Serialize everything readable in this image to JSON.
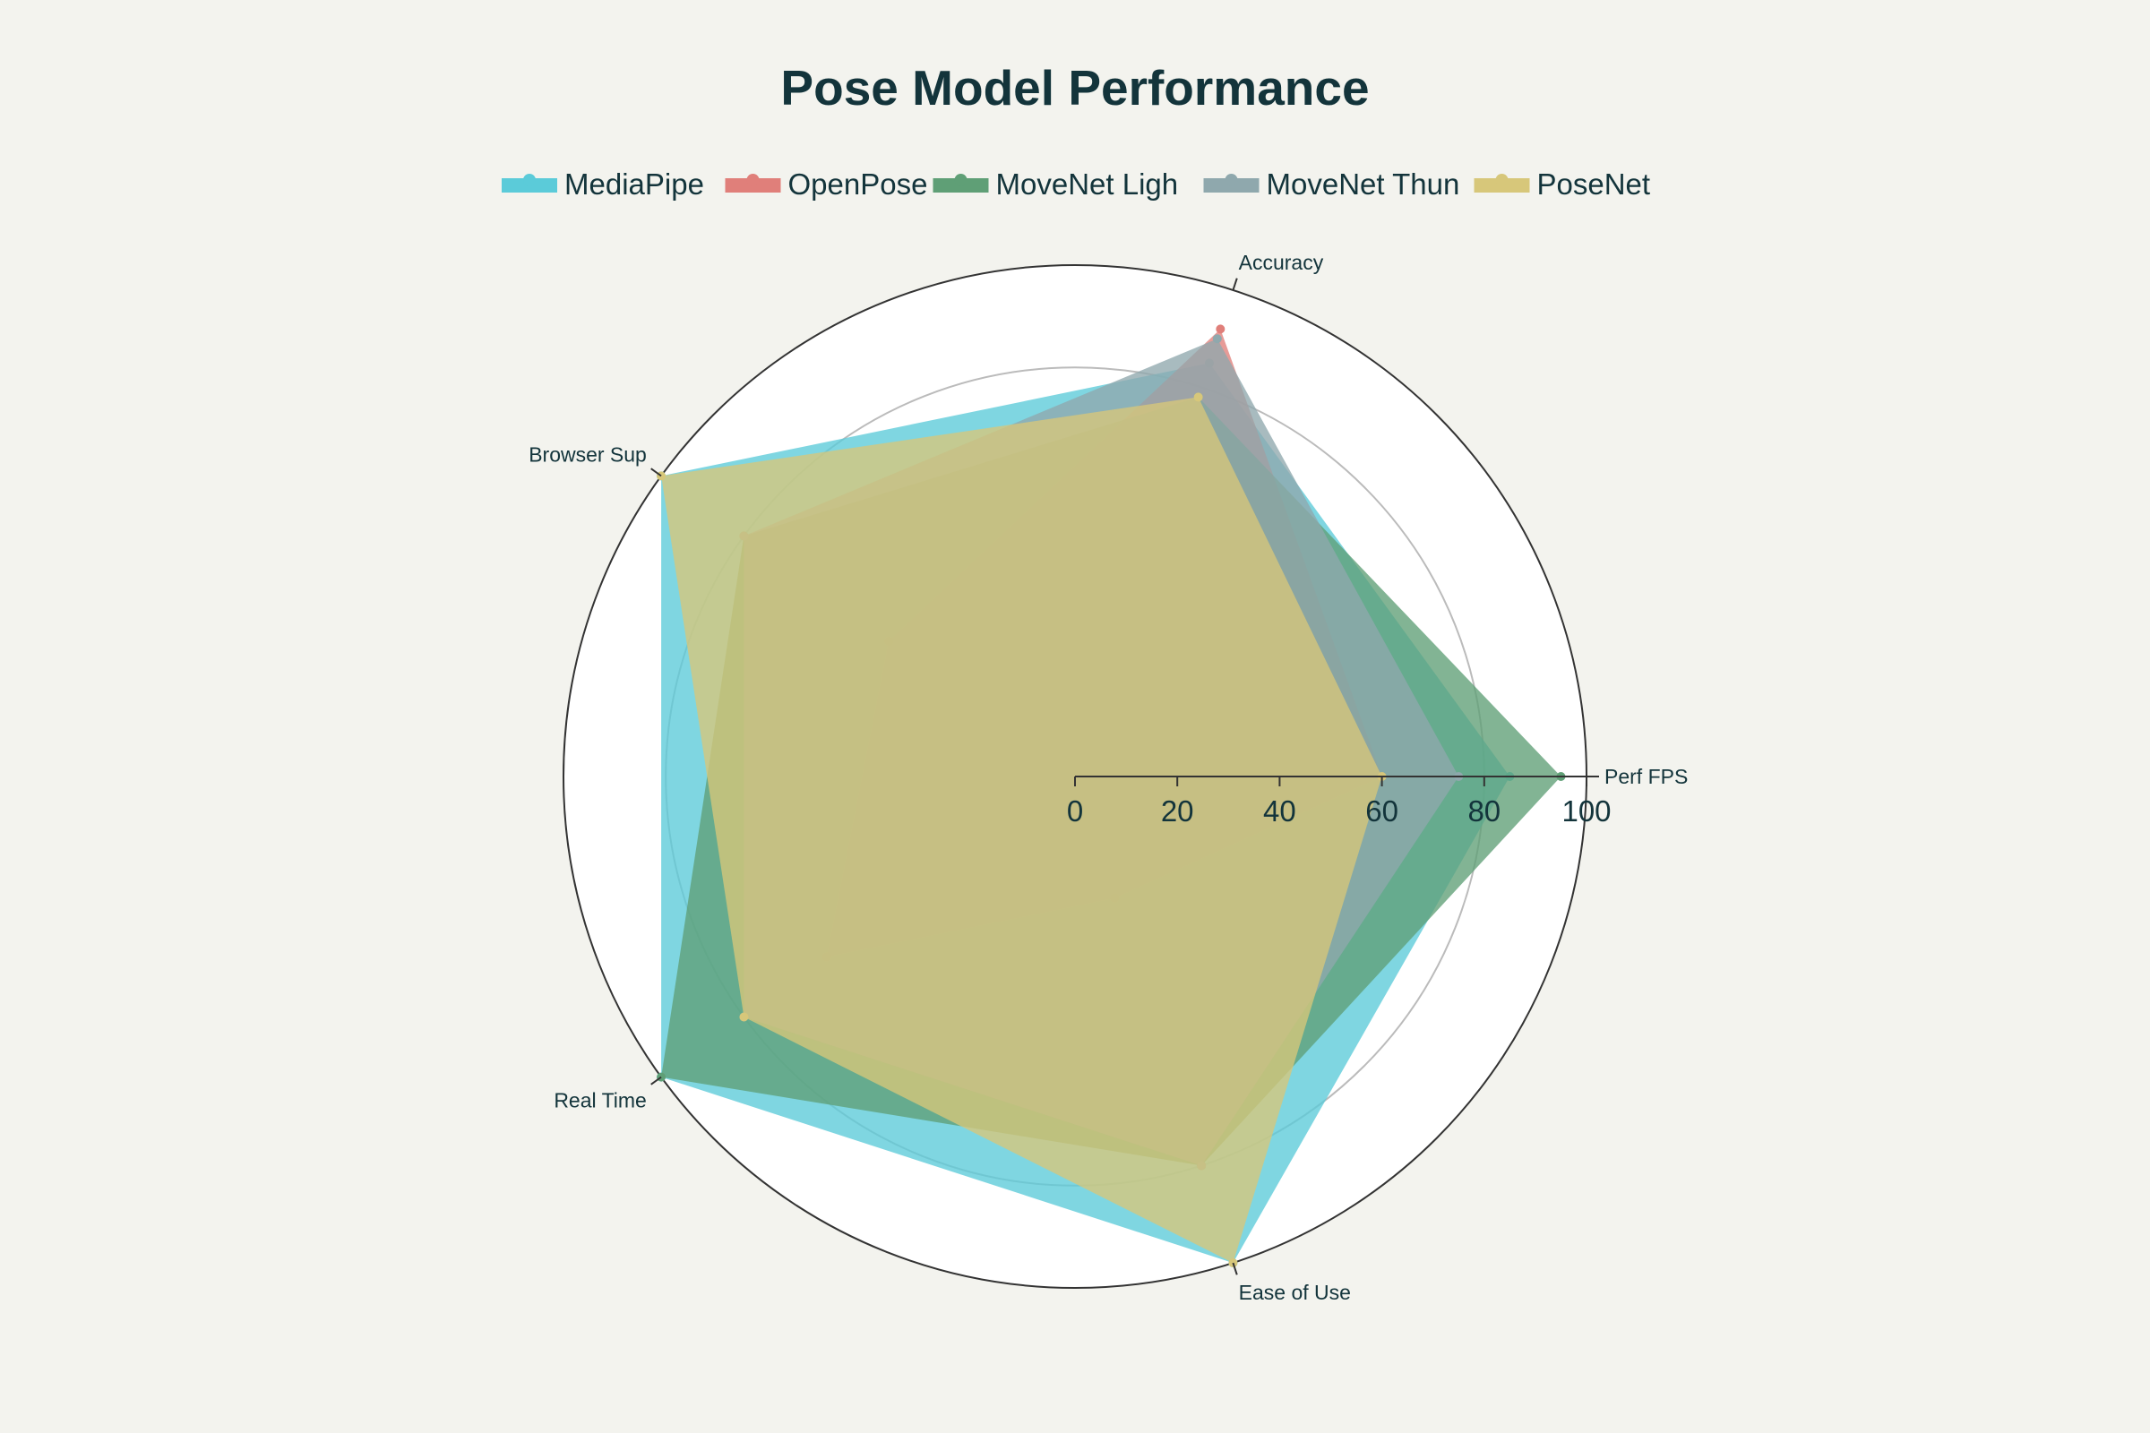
{
  "chart_data": {
    "type": "radar",
    "title": "Pose Model Performance",
    "axes": [
      "Accuracy",
      "Perf FPS",
      "Ease of Use",
      "Real Time",
      "Browser Sup"
    ],
    "radial_range": [
      0,
      100
    ],
    "radial_ticks": [
      "0",
      "20",
      "40",
      "60",
      "80",
      "100"
    ],
    "legend_position": "top",
    "series": [
      {
        "name": "MediaPipe",
        "values": [
          85,
          85,
          100,
          100,
          100
        ],
        "color": "#5bcbd9"
      },
      {
        "name": "OpenPose",
        "values": [
          92,
          60,
          25,
          60,
          45
        ],
        "color": "#e07f7a"
      },
      {
        "name": "MoveNet Ligh",
        "values": [
          78,
          95,
          80,
          100,
          80
        ],
        "color": "#5f9f76"
      },
      {
        "name": "MoveNet Thun",
        "values": [
          90,
          75,
          80,
          80,
          80
        ],
        "color": "#8fa8ad"
      },
      {
        "name": "PoseNet",
        "values": [
          78,
          60,
          100,
          80,
          100
        ],
        "color": "#d7c77a"
      }
    ]
  }
}
